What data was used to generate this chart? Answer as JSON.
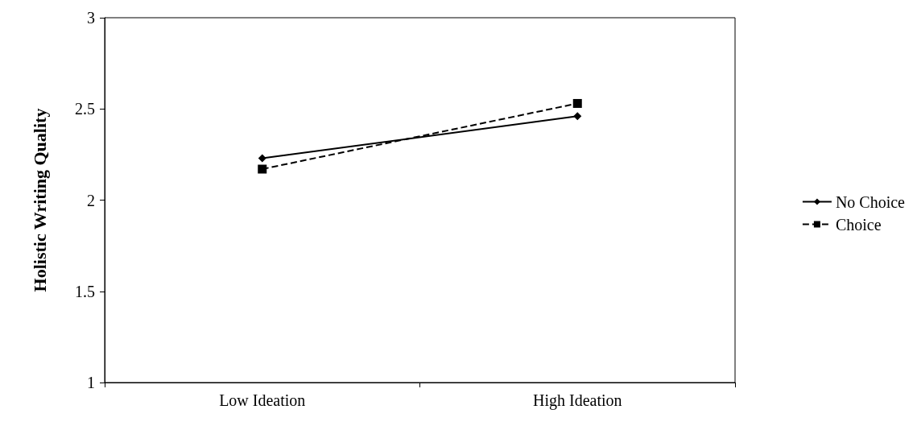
{
  "chart_data": {
    "type": "line",
    "ylabel": "Holistic Writing Quality",
    "categories": [
      "Low Ideation",
      "High Ideation"
    ],
    "series": [
      {
        "name": "No Choice",
        "color": "#000000",
        "values": [
          2.23,
          2.46
        ],
        "marker": "diamond",
        "line_style": "solid"
      },
      {
        "name": "Choice",
        "color": "#000000",
        "values": [
          2.17,
          2.53
        ],
        "marker": "square",
        "line_style": "dashed"
      }
    ],
    "ylim": [
      1,
      3
    ],
    "yticks": [
      1,
      1.5,
      2,
      2.5,
      3
    ],
    "grid": false,
    "legend": "right"
  }
}
